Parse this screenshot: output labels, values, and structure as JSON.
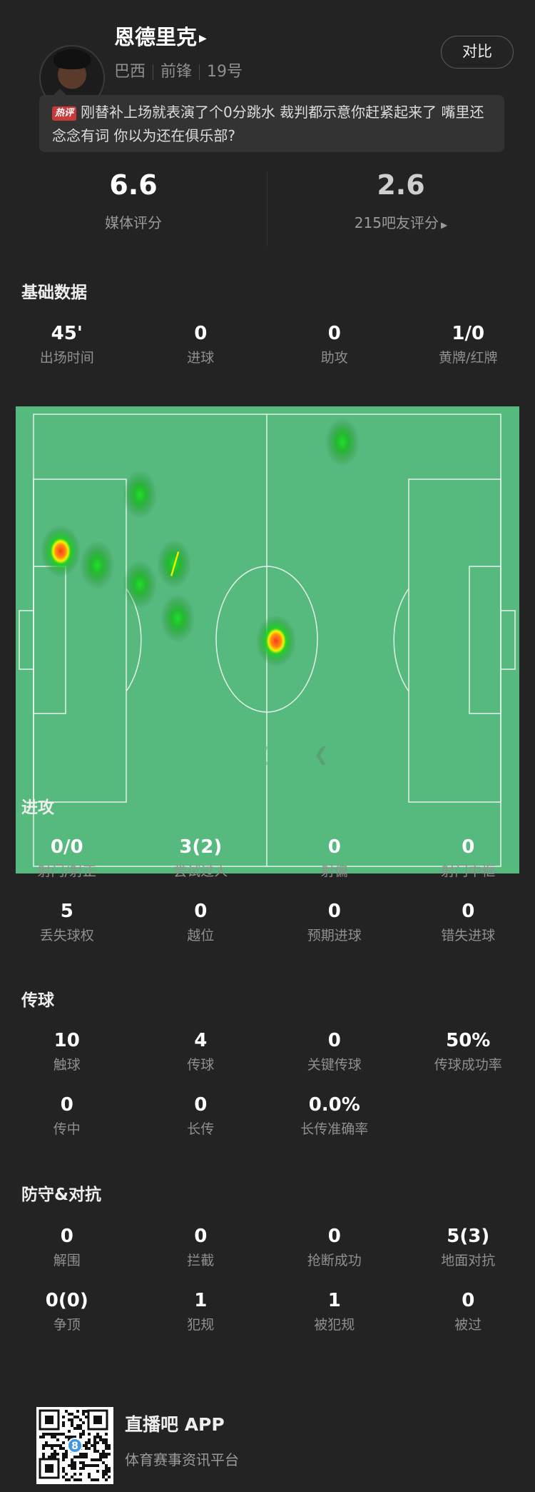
{
  "player": {
    "name": "恩德里克",
    "nation": "巴西",
    "position": "前锋",
    "number": "19号",
    "compare_label": "对比"
  },
  "hot_comment": {
    "badge": "热评",
    "text": "刚替补上场就表演了个0分跳水 裁判都示意你赶紧起来了 嘴里还念念有词 你以为还在俱乐部?"
  },
  "ratings": {
    "media": {
      "value": "6.6",
      "label": "媒体评分"
    },
    "fans": {
      "value": "2.6",
      "label": "215吧友评分"
    }
  },
  "sections": {
    "basic": {
      "title": "基础数据",
      "stats": [
        {
          "value": "45'",
          "label": "出场时间"
        },
        {
          "value": "0",
          "label": "进球"
        },
        {
          "value": "0",
          "label": "助攻"
        },
        {
          "value": "1/0",
          "label": "黄牌/红牌"
        }
      ]
    },
    "attack": {
      "title": "进攻",
      "stats": [
        {
          "value": "0/0",
          "label": "射门/射正"
        },
        {
          "value": "3(2)",
          "label": "尝试过人"
        },
        {
          "value": "0",
          "label": "射偏"
        },
        {
          "value": "0",
          "label": "射门中框"
        },
        {
          "value": "5",
          "label": "丢失球权"
        },
        {
          "value": "0",
          "label": "越位"
        },
        {
          "value": "0",
          "label": "预期进球"
        },
        {
          "value": "0",
          "label": "错失进球"
        }
      ]
    },
    "passing": {
      "title": "传球",
      "stats": [
        {
          "value": "10",
          "label": "触球"
        },
        {
          "value": "4",
          "label": "传球"
        },
        {
          "value": "0",
          "label": "关键传球"
        },
        {
          "value": "50%",
          "label": "传球成功率"
        },
        {
          "value": "0",
          "label": "传中"
        },
        {
          "value": "0",
          "label": "长传"
        },
        {
          "value": "0.0%",
          "label": "长传准确率"
        }
      ]
    },
    "defense": {
      "title": "防守&对抗",
      "stats": [
        {
          "value": "0",
          "label": "解围"
        },
        {
          "value": "0",
          "label": "拦截"
        },
        {
          "value": "0",
          "label": "抢断成功"
        },
        {
          "value": "5(3)",
          "label": "地面对抗"
        },
        {
          "value": "0(0)",
          "label": "争顶"
        },
        {
          "value": "1",
          "label": "犯规"
        },
        {
          "value": "1",
          "label": "被犯规"
        },
        {
          "value": "0",
          "label": "被过"
        }
      ]
    }
  },
  "heatmap": {
    "pitch_color": "#56b97e",
    "line_color": "#e6f3ea",
    "attack_direction": "left",
    "pitch_length_m": 105,
    "pitch_width_m": 68,
    "spots": [
      {
        "x": 69.4,
        "y": 4.2,
        "intensity": 0.4
      },
      {
        "x": 23.9,
        "y": 12.1,
        "intensity": 0.4
      },
      {
        "x": 6.1,
        "y": 20.6,
        "intensity": 1.0
      },
      {
        "x": 14.3,
        "y": 22.7,
        "intensity": 0.4
      },
      {
        "x": 23.9,
        "y": 25.6,
        "intensity": 0.4
      },
      {
        "x": 31.6,
        "y": 22.5,
        "intensity": 0.6
      },
      {
        "x": 32.4,
        "y": 30.7,
        "intensity": 0.4
      },
      {
        "x": 54.5,
        "y": 34.1,
        "intensity": 1.0
      }
    ]
  },
  "footer": {
    "app_name": "直播吧 APP",
    "slogan": "体育赛事资讯平台"
  }
}
